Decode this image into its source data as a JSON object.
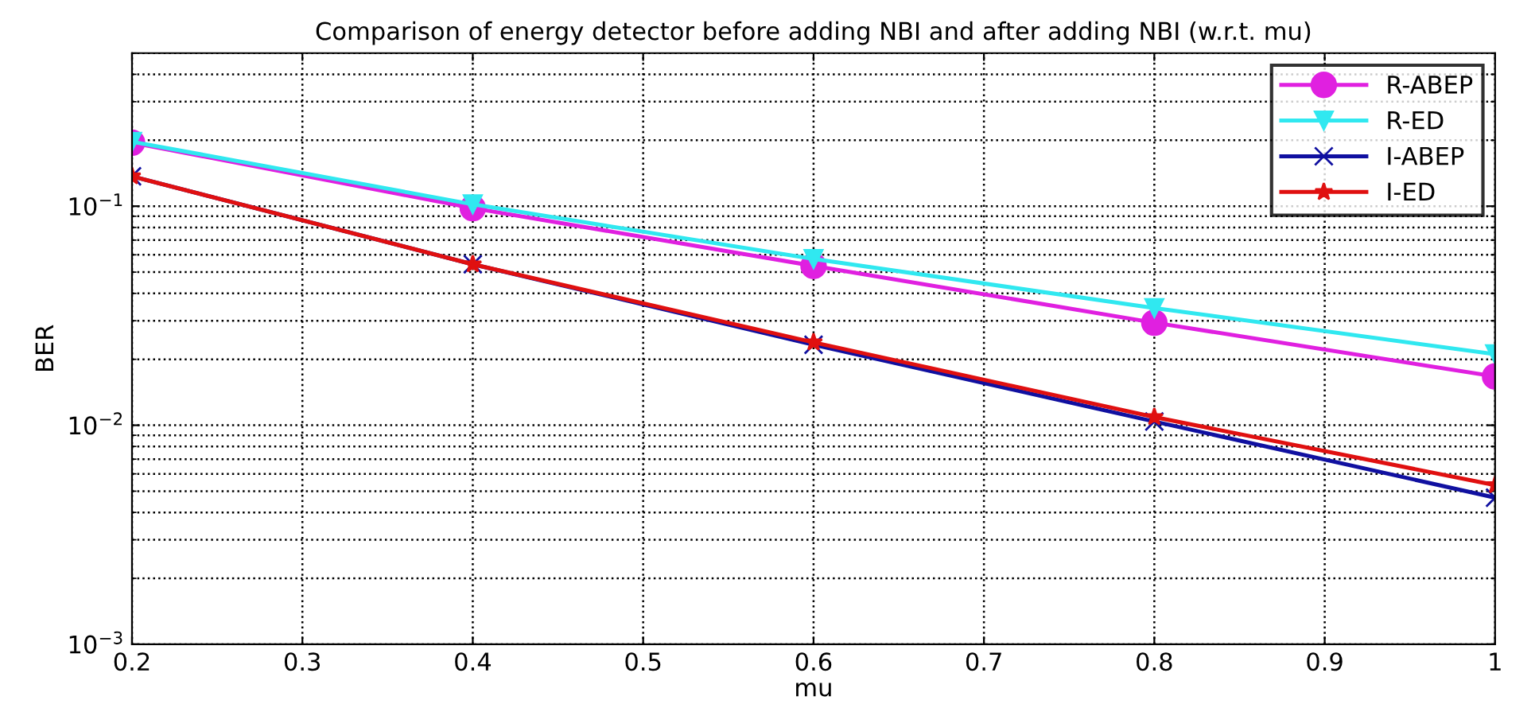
{
  "chart_data": {
    "type": "line",
    "title": "Comparison of energy detector before adding NBI and after adding NBI (w.r.t. mu)",
    "xlabel": "mu",
    "ylabel": "BER",
    "x": [
      0.2,
      0.4,
      0.6,
      0.8,
      1.0
    ],
    "series": [
      {
        "name": "R-ABEP",
        "color": "#e020e0",
        "marker": "circle",
        "values": [
          0.195,
          0.098,
          0.0534,
          0.0294,
          0.0167
        ]
      },
      {
        "name": "R-ED",
        "color": "#30e8f0",
        "marker": "triangle",
        "values": [
          0.197,
          0.102,
          0.0574,
          0.0343,
          0.0211
        ]
      },
      {
        "name": "I-ABEP",
        "color": "#1010a0",
        "marker": "cross",
        "values": [
          0.137,
          0.0543,
          0.0233,
          0.0104,
          0.00467
        ]
      },
      {
        "name": "I-ED",
        "color": "#e01010",
        "marker": "star",
        "values": [
          0.137,
          0.0543,
          0.0239,
          0.0109,
          0.00533
        ]
      }
    ],
    "log": "y",
    "xlim": [
      0.2,
      1
    ],
    "ylim": [
      0.001,
      0.5
    ],
    "xticks": [
      0.2,
      0.3,
      0.4,
      0.5,
      0.6,
      0.7,
      0.8,
      0.9,
      1
    ],
    "yticks": [
      {
        "value": 0.001,
        "label": "10$^{−3}$"
      },
      {
        "value": 0.01,
        "label": "10$^{−2}$"
      },
      {
        "value": 0.1,
        "label": "10$^{−1}$"
      }
    ],
    "grid": true,
    "legend": "top right",
    "line_style": "solid"
  }
}
